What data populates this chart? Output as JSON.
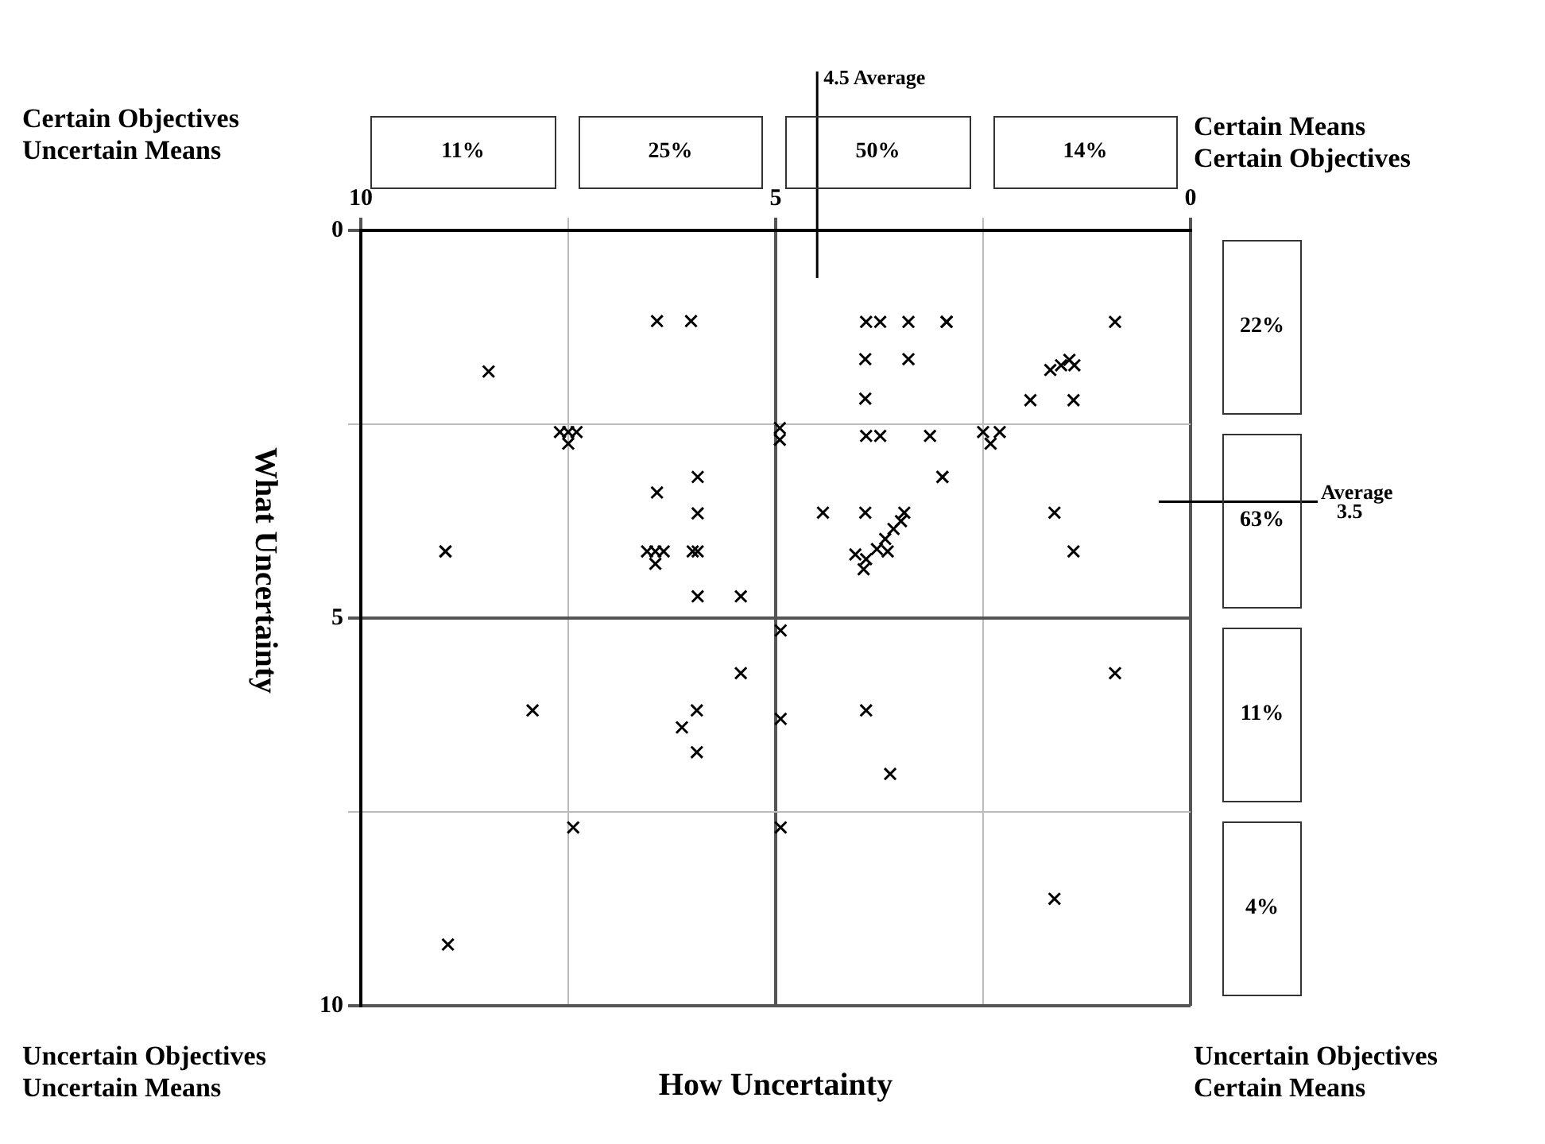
{
  "chart_data": {
    "type": "scatter",
    "xlabel": "How Uncertainty",
    "ylabel": "What Uncertainty",
    "x": [
      6.43,
      6.02,
      8.46,
      7.6,
      7.5,
      7.4,
      7.5,
      4.95,
      4.95,
      5.94,
      6.43,
      5.94,
      8.98,
      8.98,
      6.55,
      6.45,
      6.35,
      6.45,
      6.0,
      5.94,
      5.94,
      5.42,
      3.91,
      3.74,
      3.4,
      2.94,
      2.94,
      3.92,
      3.4,
      3.92,
      0.91,
      1.56,
      1.69,
      1.46,
      1.4,
      1.93,
      1.41,
      3.91,
      3.74,
      3.14,
      2.5,
      2.3,
      2.41,
      2.99,
      2.99,
      4.43,
      3.92,
      3.45,
      3.94,
      4.04,
      3.78,
      3.68,
      3.58,
      3.49,
      3.91,
      3.65,
      1.64,
      1.41,
      4.94,
      5.42,
      7.93,
      5.95,
      6.13,
      5.95,
      4.94,
      3.91,
      3.62,
      0.91,
      7.44,
      4.94,
      1.64,
      8.95
    ],
    "values": [
      1.17,
      1.17,
      1.82,
      2.6,
      2.6,
      2.6,
      2.75,
      2.55,
      2.7,
      3.18,
      3.38,
      3.65,
      4.14,
      4.14,
      4.14,
      4.14,
      4.14,
      4.3,
      4.14,
      4.14,
      4.72,
      4.72,
      1.18,
      1.18,
      1.18,
      1.18,
      1.18,
      1.66,
      1.66,
      2.17,
      1.18,
      1.74,
      1.8,
      1.67,
      1.74,
      2.19,
      2.19,
      2.65,
      2.65,
      2.65,
      2.6,
      2.6,
      2.75,
      3.18,
      3.18,
      3.64,
      3.64,
      3.64,
      4.37,
      4.18,
      4.11,
      3.98,
      3.85,
      3.75,
      4.24,
      4.14,
      3.64,
      4.14,
      5.16,
      5.71,
      6.19,
      6.19,
      6.41,
      6.73,
      6.3,
      6.19,
      7.01,
      5.71,
      7.7,
      7.7,
      8.62,
      9.21
    ],
    "color": "#000000",
    "marker": "cross",
    "xlim": [
      10,
      0
    ],
    "xticks": [
      10,
      {
        "value": 7.5,
        "label": null
      },
      5,
      {
        "value": 2.5,
        "label": null
      },
      0
    ],
    "ylim": [
      10,
      0
    ],
    "yticks": [
      0,
      {
        "value": 2.5,
        "label": null
      },
      5,
      {
        "value": 7.5,
        "label": null
      },
      10
    ],
    "grid": true,
    "ref_lines": [
      {
        "axis": "x",
        "value": 4.5,
        "label": "4.5 Average"
      },
      {
        "axis": "y",
        "value": 3.5,
        "label": "Average 3.5"
      }
    ],
    "annotations": [
      "Certain Objectives Uncertain Means",
      "Certain Means Certain Objectives",
      "Uncertain Objectives Uncertain Means",
      "Uncertain Objectives Certain Means",
      "11%",
      "25%",
      "50%",
      "14%",
      "22%",
      "63%",
      "11%",
      "4%"
    ]
  }
}
